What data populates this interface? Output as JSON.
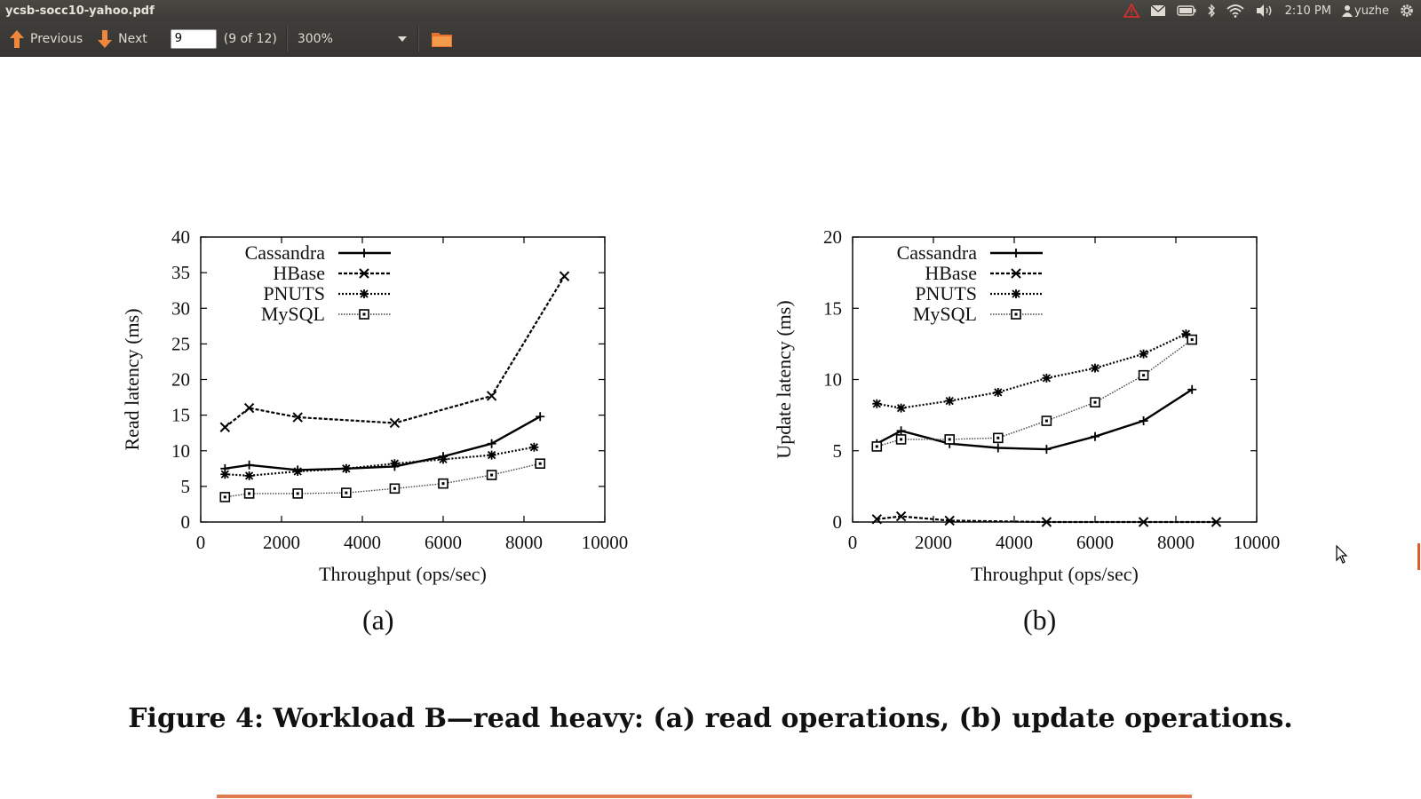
{
  "window": {
    "title": "ycsb-socc10-yahoo.pdf"
  },
  "tray": {
    "clock": "2:10 PM",
    "user": "yuzhe"
  },
  "toolbar": {
    "previous_label": "Previous",
    "next_label": "Next",
    "page_value": "9",
    "page_count": "(9 of 12)",
    "zoom": "300%"
  },
  "figure": {
    "caption": "Figure 4: Workload B—read heavy: (a) read operations, (b) update operations.",
    "sublabel_a": "(a)",
    "sublabel_b": "(b)"
  },
  "colors": {
    "toolbar_bg": "#3c3b37",
    "accent_orange": "#e07a4f",
    "alert_red": "#d42f2f"
  },
  "chart_data": [
    {
      "type": "line",
      "xlabel": "Throughput (ops/sec)",
      "ylabel": "Read latency (ms)",
      "xlim": [
        0,
        10000
      ],
      "ylim": [
        0,
        40
      ],
      "xticks": [
        0,
        2000,
        4000,
        6000,
        8000,
        10000
      ],
      "yticks": [
        0,
        5,
        10,
        15,
        20,
        25,
        30,
        35,
        40
      ],
      "legend": "top-left",
      "grid": false,
      "series": [
        {
          "name": "Cassandra",
          "marker": "plus",
          "dash": "solid",
          "x": [
            600,
            1200,
            2400,
            3600,
            4800,
            6000,
            7200,
            8400
          ],
          "y": [
            7.5,
            8,
            7.3,
            7.5,
            7.8,
            9.2,
            11,
            14.8
          ]
        },
        {
          "name": "HBase",
          "marker": "x",
          "dash": "dashed",
          "x": [
            600,
            1200,
            2400,
            4800,
            7200,
            9000
          ],
          "y": [
            13.3,
            16,
            14.7,
            13.9,
            17.7,
            34.5
          ]
        },
        {
          "name": "PNUTS",
          "marker": "star",
          "dash": "dotted",
          "x": [
            600,
            1200,
            2400,
            3600,
            4800,
            6000,
            7200,
            8250
          ],
          "y": [
            6.7,
            6.5,
            7.1,
            7.5,
            8.2,
            8.8,
            9.4,
            10.5
          ]
        },
        {
          "name": "MySQL",
          "marker": "square",
          "dash": "fine",
          "x": [
            600,
            1200,
            2400,
            3600,
            4800,
            6000,
            7200,
            8400
          ],
          "y": [
            3.5,
            4,
            4,
            4.1,
            4.7,
            5.4,
            6.6,
            8.2
          ]
        }
      ]
    },
    {
      "type": "line",
      "xlabel": "Throughput (ops/sec)",
      "ylabel": "Update latency (ms)",
      "xlim": [
        0,
        10000
      ],
      "ylim": [
        0,
        20
      ],
      "xticks": [
        0,
        2000,
        4000,
        6000,
        8000,
        10000
      ],
      "yticks": [
        0,
        5,
        10,
        15,
        20
      ],
      "legend": "top-left",
      "grid": false,
      "series": [
        {
          "name": "Cassandra",
          "marker": "plus",
          "dash": "solid",
          "x": [
            600,
            1200,
            2400,
            3600,
            4800,
            6000,
            7200,
            8400
          ],
          "y": [
            5.5,
            6.4,
            5.5,
            5.2,
            5.1,
            6,
            7.1,
            9.3
          ]
        },
        {
          "name": "HBase",
          "marker": "x",
          "dash": "dashed",
          "x": [
            600,
            1200,
            2400,
            4800,
            7200,
            9000
          ],
          "y": [
            0.2,
            0.4,
            0.1,
            0,
            0,
            0
          ]
        },
        {
          "name": "PNUTS",
          "marker": "star",
          "dash": "dotted",
          "x": [
            600,
            1200,
            2400,
            3600,
            4800,
            6000,
            7200,
            8250
          ],
          "y": [
            8.3,
            8,
            8.5,
            9.1,
            10.1,
            10.8,
            11.8,
            13.2
          ]
        },
        {
          "name": "MySQL",
          "marker": "square",
          "dash": "fine",
          "x": [
            600,
            1200,
            2400,
            3600,
            4800,
            6000,
            7200,
            8400
          ],
          "y": [
            5.3,
            5.8,
            5.8,
            5.9,
            7.1,
            8.4,
            10.3,
            12.8
          ]
        }
      ]
    }
  ]
}
